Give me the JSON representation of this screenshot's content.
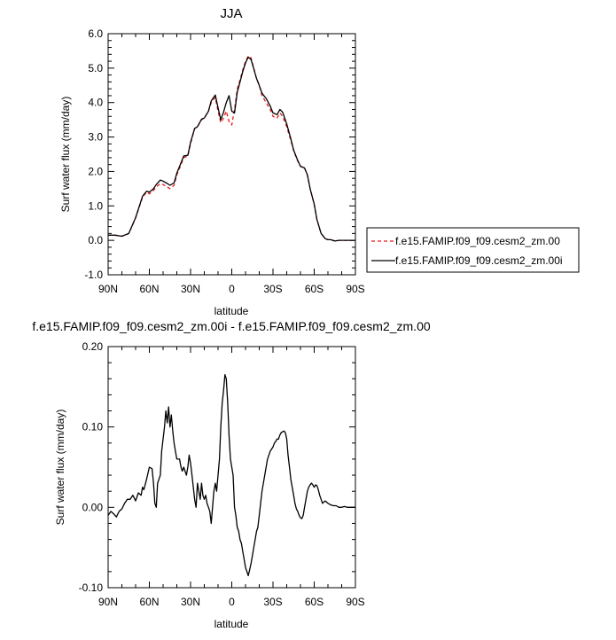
{
  "chart_data": [
    {
      "type": "line",
      "title": "JJA",
      "xlabel": "latitude",
      "ylabel": "Surf water flux (mm/day)",
      "xlim": [
        90,
        -90
      ],
      "ylim": [
        -1.0,
        6.0
      ],
      "xticks": [
        90,
        60,
        30,
        0,
        -30,
        -60,
        -90
      ],
      "xtick_labels": [
        "90N",
        "60N",
        "30N",
        "0",
        "30S",
        "60S",
        "90S"
      ],
      "yticks": [
        -1.0,
        0.0,
        1.0,
        2.0,
        3.0,
        4.0,
        5.0,
        6.0
      ],
      "ytick_labels": [
        "-1.0",
        "0.0",
        "1.0",
        "2.0",
        "3.0",
        "4.0",
        "5.0",
        "6.0"
      ],
      "legend_position": "right",
      "series": [
        {
          "name": "f.e15.FAMIP.f09_f09.cesm2_zm.00",
          "color": "#e31a1c",
          "dash": "dashed",
          "x": [
            90,
            85,
            80,
            75,
            70,
            65,
            62,
            60,
            57,
            55,
            52,
            50,
            47,
            45,
            42,
            40,
            37,
            35,
            32,
            30,
            27,
            25,
            22,
            20,
            17,
            15,
            12,
            10,
            8,
            6,
            4,
            2,
            0,
            -2,
            -4,
            -6,
            -8,
            -10,
            -12,
            -14,
            -16,
            -18,
            -20,
            -22,
            -25,
            -28,
            -30,
            -33,
            -35,
            -37,
            -40,
            -43,
            -45,
            -48,
            -50,
            -53,
            -55,
            -57,
            -60,
            -62,
            -65,
            -68,
            -70,
            -72,
            -75,
            -78,
            -80,
            -85,
            -90
          ],
          "y": [
            0.15,
            0.15,
            0.12,
            0.2,
            0.65,
            1.25,
            1.4,
            1.35,
            1.45,
            1.55,
            1.65,
            1.62,
            1.55,
            1.5,
            1.6,
            1.9,
            2.2,
            2.4,
            2.45,
            2.8,
            3.25,
            3.3,
            3.5,
            3.55,
            3.75,
            4.0,
            4.15,
            3.75,
            3.42,
            3.55,
            3.75,
            3.45,
            3.35,
            3.8,
            4.4,
            4.65,
            4.95,
            5.2,
            5.35,
            5.3,
            5.0,
            4.7,
            4.5,
            4.2,
            4.0,
            3.8,
            3.6,
            3.55,
            3.7,
            3.6,
            3.3,
            2.9,
            2.6,
            2.3,
            2.15,
            2.1,
            1.9,
            1.5,
            1.05,
            0.6,
            0.2,
            0.05,
            0.02,
            0.02,
            -0.02,
            0.0,
            0.0,
            0.0,
            0.0
          ]
        },
        {
          "name": "f.e15.FAMIP.f09_f09.cesm2_zm.00i",
          "color": "#000000",
          "dash": "solid",
          "x": [
            90,
            85,
            80,
            75,
            70,
            65,
            62,
            60,
            57,
            55,
            52,
            50,
            47,
            45,
            42,
            40,
            37,
            35,
            32,
            30,
            27,
            25,
            22,
            20,
            17,
            15,
            12,
            10,
            8,
            6,
            4,
            2,
            0,
            -2,
            -4,
            -6,
            -8,
            -10,
            -12,
            -14,
            -16,
            -18,
            -20,
            -22,
            -25,
            -28,
            -30,
            -33,
            -35,
            -37,
            -40,
            -43,
            -45,
            -48,
            -50,
            -53,
            -55,
            -57,
            -60,
            -62,
            -65,
            -68,
            -70,
            -72,
            -75,
            -78,
            -80,
            -85,
            -90
          ],
          "y": [
            0.15,
            0.15,
            0.12,
            0.2,
            0.66,
            1.28,
            1.43,
            1.4,
            1.5,
            1.62,
            1.75,
            1.72,
            1.65,
            1.6,
            1.67,
            1.95,
            2.25,
            2.45,
            2.47,
            2.85,
            3.25,
            3.3,
            3.52,
            3.55,
            3.75,
            4.05,
            4.22,
            3.85,
            3.5,
            3.72,
            4.0,
            4.2,
            3.75,
            3.7,
            4.3,
            4.6,
            4.9,
            5.15,
            5.32,
            5.25,
            4.98,
            4.7,
            4.5,
            4.27,
            4.12,
            3.9,
            3.7,
            3.65,
            3.8,
            3.72,
            3.38,
            2.95,
            2.62,
            2.32,
            2.15,
            2.1,
            1.9,
            1.5,
            1.05,
            0.6,
            0.2,
            0.05,
            0.02,
            0.02,
            -0.02,
            0.0,
            0.0,
            0.0,
            0.0
          ]
        }
      ]
    },
    {
      "type": "line",
      "title": "f.e15.FAMIP.f09_f09.cesm2_zm.00i - f.e15.FAMIP.f09_f09.cesm2_zm.00",
      "xlabel": "latitude",
      "ylabel": "Surf water flux (mm/day)",
      "xlim": [
        90,
        -90
      ],
      "ylim": [
        -0.1,
        0.2
      ],
      "xticks": [
        90,
        60,
        30,
        0,
        -30,
        -60,
        -90
      ],
      "xtick_labels": [
        "90N",
        "60N",
        "30N",
        "0",
        "30S",
        "60S",
        "90S"
      ],
      "yticks": [
        -0.1,
        0.0,
        0.1,
        0.2
      ],
      "ytick_labels": [
        "-0.10",
        "0.00",
        "0.10",
        "0.20"
      ],
      "series": [
        {
          "color": "#000000",
          "dash": "solid",
          "x": [
            90,
            88,
            86,
            84,
            82,
            80,
            78,
            76,
            74,
            72,
            70,
            68,
            66,
            65,
            64,
            62,
            60,
            58,
            57,
            56,
            55,
            54,
            52,
            51,
            50,
            49,
            48,
            47,
            46,
            45,
            44,
            43,
            42,
            41,
            40,
            38,
            37,
            36,
            35,
            34,
            33,
            32,
            31,
            30,
            29,
            28,
            27,
            26,
            25,
            24,
            23,
            22,
            21,
            20,
            19,
            18,
            17,
            16,
            15,
            14,
            13,
            12,
            11,
            10,
            9,
            8,
            7,
            6,
            5,
            4,
            3,
            2,
            1,
            0,
            -1,
            -2,
            -3,
            -4,
            -5,
            -6,
            -7,
            -8,
            -9,
            -10,
            -11,
            -12,
            -13,
            -14,
            -15,
            -16,
            -17,
            -18,
            -19,
            -20,
            -22,
            -24,
            -26,
            -28,
            -30,
            -31,
            -32,
            -33,
            -34,
            -35,
            -36,
            -37,
            -38,
            -39,
            -40,
            -41,
            -42,
            -43,
            -44,
            -45,
            -46,
            -47,
            -48,
            -49,
            -50,
            -51,
            -52,
            -53,
            -54,
            -55,
            -56,
            -57,
            -58,
            -59,
            -60,
            -61,
            -62,
            -63,
            -64,
            -65,
            -66,
            -68,
            -70,
            -72,
            -74,
            -76,
            -78,
            -80,
            -82,
            -84,
            -86,
            -88,
            -90
          ],
          "y": [
            -0.01,
            -0.005,
            -0.008,
            -0.012,
            -0.005,
            -0.002,
            0.005,
            0.01,
            0.01,
            0.015,
            0.008,
            0.018,
            0.015,
            0.025,
            0.022,
            0.035,
            0.05,
            0.048,
            0.03,
            0.005,
            0.0,
            0.03,
            0.04,
            0.07,
            0.085,
            0.1,
            0.12,
            0.105,
            0.125,
            0.1,
            0.115,
            0.095,
            0.08,
            0.07,
            0.06,
            0.06,
            0.05,
            0.045,
            0.05,
            0.045,
            0.04,
            0.05,
            0.065,
            0.055,
            0.04,
            0.025,
            0.01,
            0.0,
            0.03,
            0.02,
            0.01,
            0.03,
            0.015,
            0.01,
            0.015,
            0.005,
            0.0,
            -0.005,
            -0.02,
            0.0,
            0.02,
            0.03,
            0.02,
            0.04,
            0.06,
            0.1,
            0.13,
            0.145,
            0.165,
            0.16,
            0.13,
            0.09,
            0.06,
            0.05,
            0.04,
            0.0,
            -0.01,
            -0.025,
            -0.03,
            -0.04,
            -0.045,
            -0.055,
            -0.065,
            -0.075,
            -0.08,
            -0.085,
            -0.078,
            -0.07,
            -0.06,
            -0.05,
            -0.04,
            -0.03,
            -0.025,
            -0.01,
            0.02,
            0.04,
            0.06,
            0.07,
            0.075,
            0.08,
            0.082,
            0.085,
            0.085,
            0.09,
            0.093,
            0.094,
            0.095,
            0.093,
            0.085,
            0.065,
            0.05,
            0.035,
            0.025,
            0.015,
            0.005,
            -0.002,
            -0.005,
            -0.01,
            -0.013,
            -0.014,
            -0.01,
            0.0,
            0.01,
            0.02,
            0.025,
            0.028,
            0.03,
            0.028,
            0.025,
            0.028,
            0.027,
            0.022,
            0.015,
            0.01,
            0.005,
            0.008,
            0.005,
            0.003,
            0.002,
            0.002,
            0.0,
            0.0,
            0.001,
            0.0,
            0.0,
            0.0,
            0.0
          ]
        }
      ]
    }
  ]
}
